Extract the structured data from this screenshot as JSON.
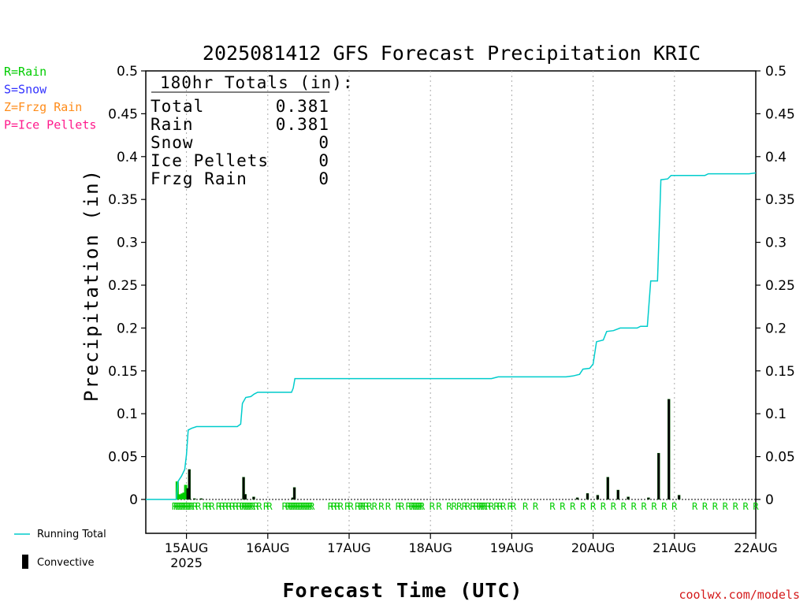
{
  "chart_data": {
    "type": "bar",
    "title": "2025081412 GFS Forecast Precipitation KRIC",
    "xlabel": "Forecast Time (UTC)",
    "ylabel": "Precipitation (in)",
    "ylim": [
      0,
      0.5
    ],
    "yticks": [
      "0",
      "0.05",
      "0.1",
      "0.15",
      "0.2",
      "0.25",
      "0.3",
      "0.35",
      "0.4",
      "0.45",
      "0.5"
    ],
    "xlim_hours": [
      0,
      180
    ],
    "xticks": [
      {
        "hour": 12,
        "label": "15AUG",
        "sub": "2025"
      },
      {
        "hour": 36,
        "label": "16AUG",
        "sub": ""
      },
      {
        "hour": 60,
        "label": "17AUG",
        "sub": ""
      },
      {
        "hour": 84,
        "label": "18AUG",
        "sub": ""
      },
      {
        "hour": 108,
        "label": "19AUG",
        "sub": ""
      },
      {
        "hour": 132,
        "label": "20AUG",
        "sub": ""
      },
      {
        "hour": 156,
        "label": "21AUG",
        "sub": ""
      },
      {
        "hour": 180,
        "label": "22AUG",
        "sub": ""
      }
    ],
    "grid": "vertical dotted at day boundaries",
    "legend_type": [
      {
        "code": "R=Rain",
        "color": "#00cc00"
      },
      {
        "code": "S=Snow",
        "color": "#3333ff"
      },
      {
        "code": "Z=Frzg Rain",
        "color": "#ff8c1a"
      },
      {
        "code": "P=Ice Pellets",
        "color": "#ff1a8c"
      }
    ],
    "totals": {
      "header": "180hr Totals (in):",
      "rows": [
        {
          "label": "Total",
          "value": "0.381"
        },
        {
          "label": "Rain",
          "value": "0.381"
        },
        {
          "label": "Snow",
          "value": "0"
        },
        {
          "label": "Ice Pellets",
          "value": "0"
        },
        {
          "label": "Frzg Rain",
          "value": "0"
        }
      ]
    },
    "series": [
      {
        "name": "Rain",
        "color": "#00cc00",
        "points": [
          [
            9.5,
            0.021
          ],
          [
            10,
            0.006
          ],
          [
            10.5,
            0.006
          ],
          [
            11,
            0.007
          ],
          [
            11.5,
            0.008
          ],
          [
            12,
            0.017
          ],
          [
            13,
            0.002
          ]
        ]
      },
      {
        "name": "Convective",
        "color": "#000000",
        "points": [
          [
            12,
            0.013
          ],
          [
            12.5,
            0.035
          ],
          [
            14,
            0.001
          ],
          [
            16,
            0.001
          ],
          [
            28.5,
            0.026
          ],
          [
            29,
            0.006
          ],
          [
            31.5,
            0.003
          ],
          [
            43,
            0.002
          ],
          [
            43.5,
            0.014
          ],
          [
            127,
            0.002
          ],
          [
            130,
            0.007
          ],
          [
            133,
            0.005
          ],
          [
            136,
            0.026
          ],
          [
            139,
            0.011
          ],
          [
            142,
            0.003
          ],
          [
            148,
            0.002
          ],
          [
            151,
            0.054
          ],
          [
            154,
            0.117
          ],
          [
            157,
            0.005
          ]
        ]
      },
      {
        "name": "Running Total",
        "color": "#00cccc",
        "points": [
          [
            0,
            0
          ],
          [
            9,
            0
          ],
          [
            9.5,
            0.021
          ],
          [
            10.5,
            0.027
          ],
          [
            11.5,
            0.035
          ],
          [
            12,
            0.052
          ],
          [
            12.5,
            0.081
          ],
          [
            13.5,
            0.083
          ],
          [
            15,
            0.085
          ],
          [
            27,
            0.085
          ],
          [
            28,
            0.088
          ],
          [
            28.5,
            0.112
          ],
          [
            29.5,
            0.119
          ],
          [
            31,
            0.12
          ],
          [
            32,
            0.123
          ],
          [
            33,
            0.125
          ],
          [
            43,
            0.125
          ],
          [
            43.5,
            0.13
          ],
          [
            44,
            0.141
          ],
          [
            54,
            0.141
          ],
          [
            66,
            0.141
          ],
          [
            78,
            0.141
          ],
          [
            102,
            0.141
          ],
          [
            104,
            0.143
          ],
          [
            124,
            0.143
          ],
          [
            126,
            0.144
          ],
          [
            128,
            0.146
          ],
          [
            129,
            0.152
          ],
          [
            131,
            0.153
          ],
          [
            132,
            0.158
          ],
          [
            133,
            0.184
          ],
          [
            135,
            0.186
          ],
          [
            136,
            0.196
          ],
          [
            138,
            0.197
          ],
          [
            140,
            0.2
          ],
          [
            145,
            0.2
          ],
          [
            146,
            0.202
          ],
          [
            148,
            0.202
          ],
          [
            149,
            0.255
          ],
          [
            151,
            0.255
          ],
          [
            152,
            0.373
          ],
          [
            154,
            0.374
          ],
          [
            155,
            0.378
          ],
          [
            165,
            0.378
          ],
          [
            166,
            0.38
          ],
          [
            178,
            0.38
          ],
          [
            180,
            0.381
          ]
        ]
      }
    ],
    "type_markers": {
      "symbol": "R",
      "hours": [
        8.5,
        9,
        9.5,
        10,
        10.5,
        11,
        11.5,
        12,
        12.5,
        13,
        13.5,
        14.5,
        15.5,
        17.5,
        18.5,
        19.5,
        21.5,
        22.5,
        23.5,
        24.5,
        25.5,
        26.5,
        27.5,
        28.5,
        29,
        29.5,
        30,
        30.5,
        31,
        31.5,
        32.5,
        33.5,
        35.5,
        36.5,
        41,
        42,
        42.5,
        43,
        43.5,
        44,
        44.5,
        45,
        45.5,
        46,
        46.5,
        47,
        47.5,
        48,
        48.5,
        49,
        54.5,
        55.5,
        56.5,
        57.5,
        59.5,
        60.5,
        62.5,
        63.5,
        64,
        65,
        66,
        67.5,
        69.5,
        71.5,
        74.5,
        75.5,
        77.5,
        78.5,
        79,
        79.5,
        80,
        80.5,
        81,
        81.5,
        84.5,
        86.5,
        89.5,
        91,
        92.5,
        94,
        95,
        96.5,
        97.5,
        98.5,
        99,
        99.5,
        100,
        101,
        102,
        103.5,
        104.5,
        105.5,
        107.5,
        108.5,
        112,
        115,
        120,
        123,
        126,
        129,
        132,
        135,
        138,
        141,
        144,
        147,
        150,
        153,
        156,
        162,
        165,
        168,
        171,
        174,
        177,
        180
      ]
    },
    "bottom_legend": [
      "Running Total",
      "Convective"
    ],
    "credit": "coolwx.com/models"
  }
}
